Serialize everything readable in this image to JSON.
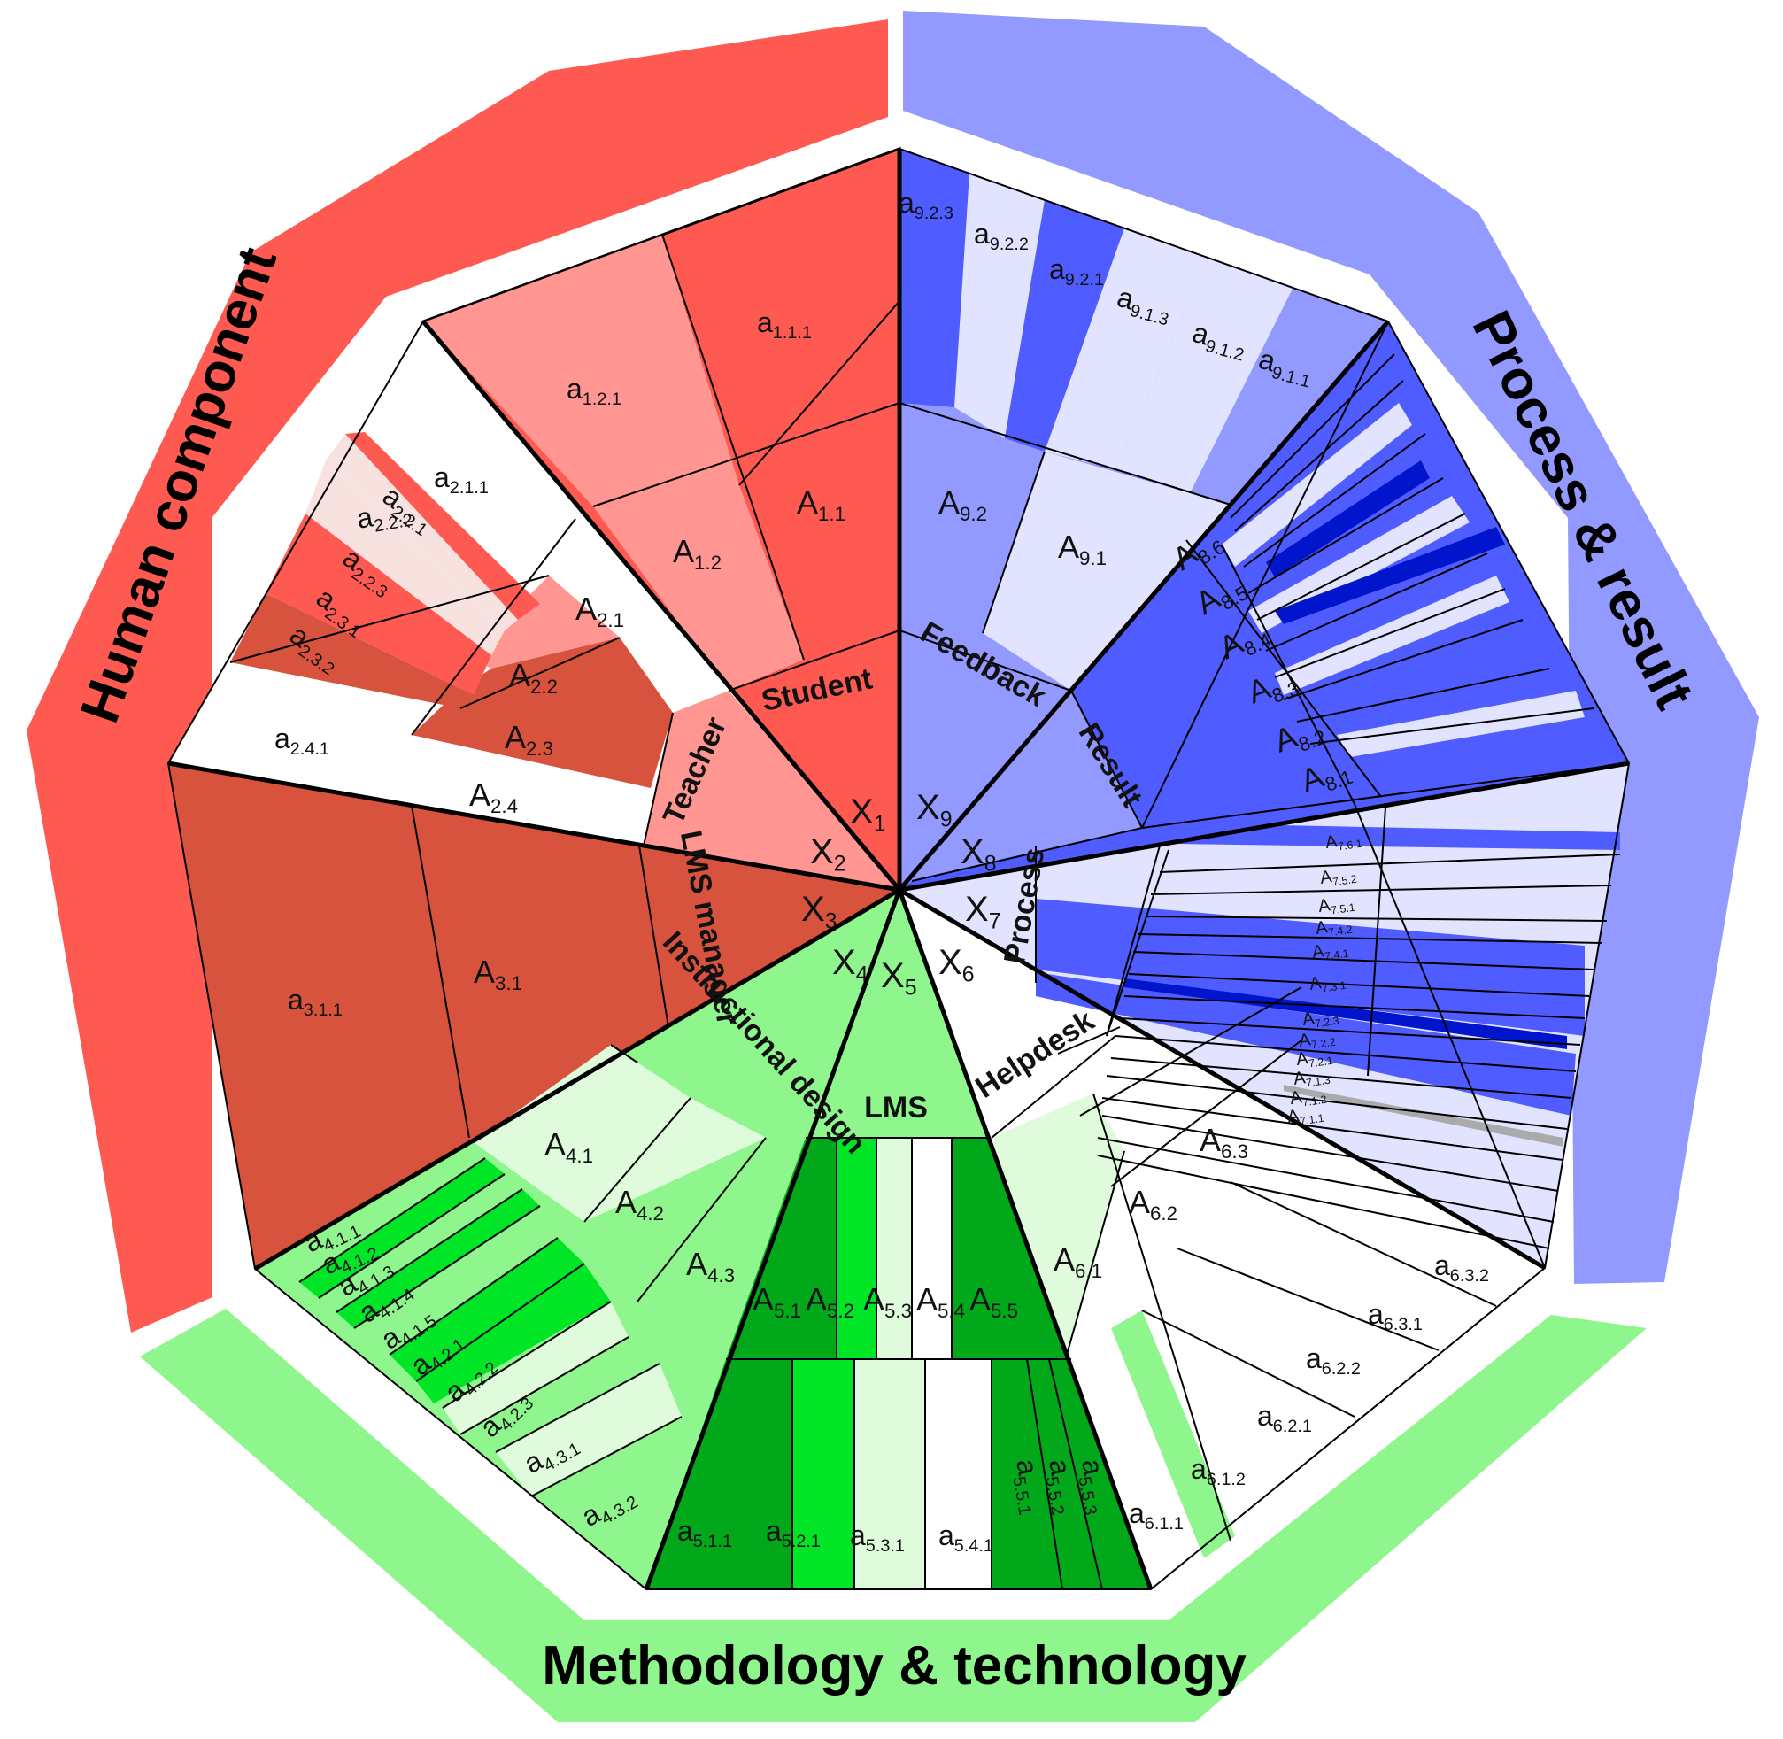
{
  "categories": [
    {
      "name": "Human component",
      "color": "#ff5a52"
    },
    {
      "name": "Process & result",
      "color": "#9299ff"
    },
    {
      "name": "Methodology & technology",
      "color": "#8ff58d"
    }
  ],
  "colors": {
    "red_main": "#ff5a52",
    "red_light": "#ff9692",
    "red_dark": "#d8533d",
    "red_pale": "#f7e2df",
    "blue_main": "#9299ff",
    "blue_strong": "#4f5cff",
    "blue_pale": "#e2e4ff",
    "blue_dark": "#0015cc",
    "green_main": "#8ff58d",
    "green_bright": "#00e626",
    "green_dark": "#00a81a",
    "green_pale": "#dffbdc"
  },
  "groups": [
    {
      "id": "X1",
      "sym": "X",
      "sub": "1",
      "label": "Student"
    },
    {
      "id": "X2",
      "sym": "X",
      "sub": "2",
      "label": "Teacher"
    },
    {
      "id": "X3",
      "sym": "X",
      "sub": "3",
      "label": "LMS manager"
    },
    {
      "id": "X4",
      "sym": "X",
      "sub": "4",
      "label": "Instructional design"
    },
    {
      "id": "X5",
      "sym": "X",
      "sub": "5",
      "label": "LMS"
    },
    {
      "id": "X6",
      "sym": "X",
      "sub": "6",
      "label": "Helpdesk"
    },
    {
      "id": "X7",
      "sym": "X",
      "sub": "7",
      "label": "Process"
    },
    {
      "id": "X8",
      "sym": "X",
      "sub": "8",
      "label": "Result"
    },
    {
      "id": "X9",
      "sym": "X",
      "sub": "9",
      "label": "Feedback"
    }
  ],
  "attributes": {
    "A1.1": "A",
    "A1.2": "A",
    "A2.1": "A",
    "A2.2": "A",
    "A2.3": "A",
    "A2.4": "A",
    "A3.1": "A",
    "A4.1": "A",
    "A4.2": "A",
    "A4.3": "A",
    "A5.1": "A",
    "A5.2": "A",
    "A5.3": "A",
    "A5.4": "A",
    "A5.5": "A",
    "A6.1": "A",
    "A6.2": "A",
    "A6.3": "A",
    "A7.1.1": "A",
    "A7.1.2": "A",
    "A7.1.3": "A",
    "A7.2.1": "A",
    "A7.2.2": "A",
    "A7.2.3": "A",
    "A7.3.1": "A",
    "A7.4.1": "A",
    "A7.4.2": "A",
    "A7.5.1": "A",
    "A7.5.2": "A",
    "A7.6.1": "A",
    "A8.1": "A",
    "A8.2": "A",
    "A8.3": "A",
    "A8.4": "A",
    "A8.5": "A",
    "A8.6": "A",
    "A9.1": "A",
    "A9.2": "A"
  },
  "indicators": {
    "a1.1.1": "a",
    "a1.2.1": "a",
    "a2.1.1": "a",
    "a2.2.1": "a",
    "a2.2.2": "a",
    "a2.2.3": "a",
    "a2.3.1": "a",
    "a2.3.2": "a",
    "a2.4.1": "a",
    "a3.1.1": "a",
    "a4.1.1": "a",
    "a4.1.2": "a",
    "a4.1.3": "a",
    "a4.1.4": "a",
    "a4.1.5": "a",
    "a4.2.1": "a",
    "a4.2.2": "a",
    "a4.2.3": "a",
    "a4.3.1": "a",
    "a4.3.2": "a",
    "a5.1.1": "a",
    "a5.2.1": "a",
    "a5.3.1": "a",
    "a5.4.1": "a",
    "a5.5.1": "a",
    "a5.5.2": "a",
    "a5.5.3": "a",
    "a6.1.1": "a",
    "a6.1.2": "a",
    "a6.2.1": "a",
    "a6.2.2": "a",
    "a6.3.1": "a",
    "a6.3.2": "a",
    "a9.1.1": "a",
    "a9.1.2": "a",
    "a9.1.3": "a",
    "a9.2.1": "a",
    "a9.2.2": "a",
    "a9.2.3": "a"
  }
}
